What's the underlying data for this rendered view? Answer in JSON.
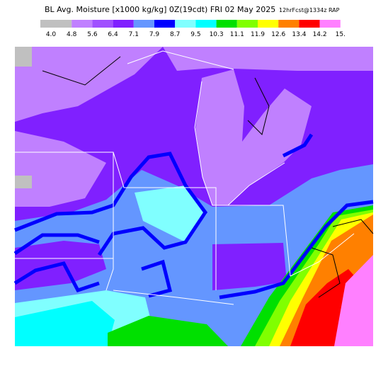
{
  "header": {
    "title": "BL Avg. Moisture [x1000 kg/kg] 0Z(19cdt) FRI 02 May 2025",
    "forecast": "12hrFcst@1334z RAP"
  },
  "legend": {
    "labels": [
      "4.0",
      "4.8",
      "5.6",
      "6.4",
      "7.1",
      "7.9",
      "8.7",
      "9.5",
      "10.3",
      "11.1",
      "11.9",
      "12.6",
      "13.4",
      "14.2",
      "15."
    ],
    "colors": [
      "#c0c0c0",
      "#c080ff",
      "#a050ff",
      "#8020ff",
      "#6496ff",
      "#0000ff",
      "#80ffff",
      "#00ffff",
      "#00e000",
      "#80ff00",
      "#ffff00",
      "#ff8000",
      "#ff0000",
      "#ff80ff"
    ]
  }
}
